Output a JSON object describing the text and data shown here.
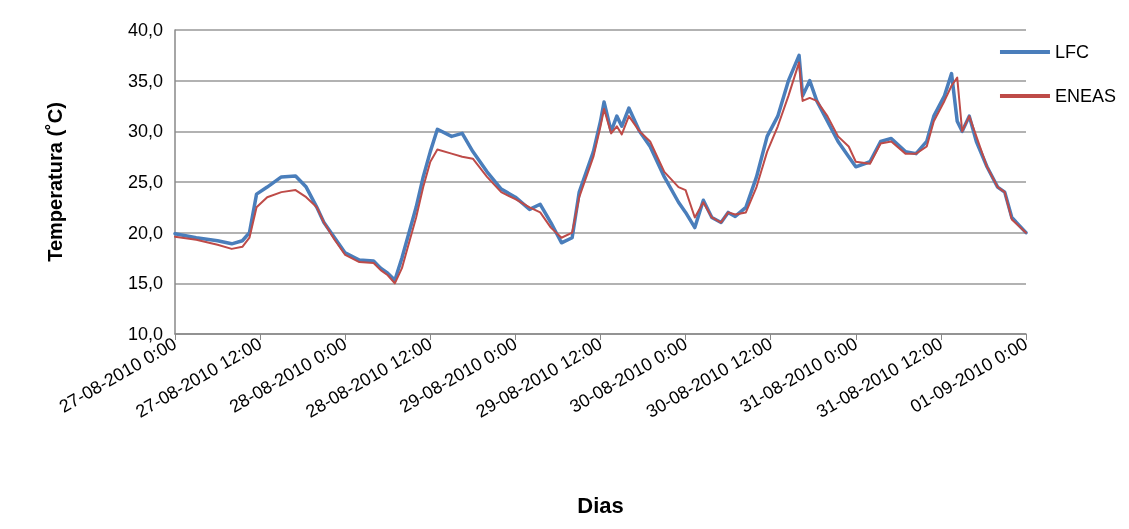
{
  "chart_data": {
    "type": "line",
    "xlabel": "Dias",
    "ylabel": "Temperatura (˚C)",
    "x": [
      "2010-08-27T00:00",
      "2010-08-27T03:00",
      "2010-08-27T06:00",
      "2010-08-27T08:00",
      "2010-08-27T09:30",
      "2010-08-27T10:30",
      "2010-08-27T11:30",
      "2010-08-27T13:00",
      "2010-08-27T15:00",
      "2010-08-27T17:00",
      "2010-08-27T18:30",
      "2010-08-27T20:00",
      "2010-08-27T21:00",
      "2010-08-27T22:30",
      "2010-08-28T00:00",
      "2010-08-28T02:00",
      "2010-08-28T04:00",
      "2010-08-28T05:00",
      "2010-08-28T06:00",
      "2010-08-28T07:00",
      "2010-08-28T08:00",
      "2010-08-28T10:00",
      "2010-08-28T11:00",
      "2010-08-28T12:00",
      "2010-08-28T13:00",
      "2010-08-28T15:00",
      "2010-08-28T16:30",
      "2010-08-28T18:00",
      "2010-08-28T20:00",
      "2010-08-28T22:00",
      "2010-08-29T00:00",
      "2010-08-29T02:00",
      "2010-08-29T03:30",
      "2010-08-29T05:00",
      "2010-08-29T06:30",
      "2010-08-29T08:00",
      "2010-08-29T09:00",
      "2010-08-29T11:00",
      "2010-08-29T12:00",
      "2010-08-29T12:30",
      "2010-08-29T13:30",
      "2010-08-29T14:18",
      "2010-08-29T15:00",
      "2010-08-29T16:00",
      "2010-08-29T17:30",
      "2010-08-29T19:00",
      "2010-08-29T21:00",
      "2010-08-29T23:00",
      "2010-08-30T00:00",
      "2010-08-30T01:18",
      "2010-08-30T02:30",
      "2010-08-30T03:42",
      "2010-08-30T05:00",
      "2010-08-30T06:00",
      "2010-08-30T07:00",
      "2010-08-30T08:30",
      "2010-08-30T10:00",
      "2010-08-30T11:30",
      "2010-08-30T13:00",
      "2010-08-30T14:30",
      "2010-08-30T16:00",
      "2010-08-30T16:30",
      "2010-08-30T17:30",
      "2010-08-30T18:30",
      "2010-08-30T20:00",
      "2010-08-30T21:30",
      "2010-08-30T23:00",
      "2010-08-31T00:00",
      "2010-08-31T02:00",
      "2010-08-31T03:30",
      "2010-08-31T05:00",
      "2010-08-31T07:00",
      "2010-08-31T08:30",
      "2010-08-31T10:00",
      "2010-08-31T11:00",
      "2010-08-31T12:30",
      "2010-08-31T13:30",
      "2010-08-31T14:18",
      "2010-08-31T15:00",
      "2010-08-31T16:00",
      "2010-08-31T17:00",
      "2010-08-31T18:30",
      "2010-08-31T20:00",
      "2010-08-31T21:00",
      "2010-08-31T22:00",
      "2010-09-01T00:00"
    ],
    "series": [
      {
        "name": "LFC",
        "color": "#4a7ebb",
        "values": [
          19.9,
          19.5,
          19.2,
          18.9,
          19.2,
          20,
          23.8,
          24.5,
          25.5,
          25.6,
          24.5,
          22.5,
          21,
          19.5,
          18,
          17.3,
          17.2,
          16.5,
          16,
          15.3,
          17.5,
          22.5,
          25.5,
          28,
          30.2,
          29.5,
          29.8,
          28,
          26,
          24.3,
          23.5,
          22.3,
          22.8,
          21,
          19,
          19.5,
          24,
          28,
          31,
          32.9,
          30,
          31.5,
          30.5,
          32.3,
          30,
          28.5,
          25.5,
          23,
          22,
          20.5,
          23.2,
          21.5,
          21,
          22,
          21.6,
          22.5,
          25.5,
          29.5,
          31.5,
          35,
          37.5,
          33.5,
          35,
          33,
          31,
          29,
          27.5,
          26.5,
          27,
          29,
          29.3,
          28,
          27.8,
          29,
          31.5,
          33.5,
          35.7,
          31,
          30,
          31.5,
          29,
          26.5,
          24.5,
          24,
          21.5,
          20
        ]
      },
      {
        "name": "ENEAS",
        "color": "#be4b48",
        "values": [
          19.6,
          19.3,
          18.8,
          18.4,
          18.6,
          19.5,
          22.5,
          23.5,
          24,
          24.2,
          23.5,
          22.5,
          21,
          19.3,
          17.8,
          17.1,
          17,
          16.3,
          15.8,
          15,
          16.5,
          21.5,
          24.5,
          27,
          28.2,
          27.8,
          27.5,
          27.3,
          25.5,
          24,
          23.3,
          22.5,
          22,
          20.5,
          19.5,
          20,
          23.5,
          27.5,
          30.5,
          32.2,
          29.8,
          30.5,
          29.7,
          31.5,
          30,
          29,
          26,
          24.5,
          24.2,
          21.5,
          23,
          21.5,
          21,
          22,
          21.8,
          22,
          24.5,
          28,
          30.5,
          33.5,
          36.8,
          33,
          33.3,
          33,
          31.5,
          29.5,
          28.5,
          27,
          26.8,
          28.8,
          29,
          27.8,
          27.8,
          28.5,
          31,
          33,
          34.5,
          35.3,
          30,
          31.5,
          29.5,
          26.5,
          24.5,
          24,
          21.3,
          20
        ]
      }
    ],
    "xlim": [
      "2010-08-27T00:00",
      "2010-09-01T00:00"
    ],
    "xticks": [
      {
        "value": "2010-08-27T00:00",
        "label": "27-08-2010 0:00"
      },
      {
        "value": "2010-08-27T12:00",
        "label": "27-08-2010 12:00"
      },
      {
        "value": "2010-08-28T00:00",
        "label": "28-08-2010 0:00"
      },
      {
        "value": "2010-08-28T12:00",
        "label": "28-08-2010 12:00"
      },
      {
        "value": "2010-08-29T00:00",
        "label": "29-08-2010 0:00"
      },
      {
        "value": "2010-08-29T12:00",
        "label": "29-08-2010 12:00"
      },
      {
        "value": "2010-08-30T00:00",
        "label": "30-08-2010 0:00"
      },
      {
        "value": "2010-08-30T12:00",
        "label": "30-08-2010 12:00"
      },
      {
        "value": "2010-08-31T00:00",
        "label": "31-08-2010 0:00"
      },
      {
        "value": "2010-08-31T12:00",
        "label": "31-08-2010 12:00"
      },
      {
        "value": "2010-09-01T00:00",
        "label": "01-09-2010 0:00"
      }
    ],
    "ylim": [
      10,
      40
    ],
    "yticks": [
      {
        "value": 10,
        "label": "10,0"
      },
      {
        "value": 15,
        "label": "15,0"
      },
      {
        "value": 20,
        "label": "20,0"
      },
      {
        "value": 25,
        "label": "25,0"
      },
      {
        "value": 30,
        "label": "30,0"
      },
      {
        "value": 35,
        "label": "35,0"
      },
      {
        "value": 40,
        "label": "40,0"
      }
    ],
    "grid": "y",
    "legend": "right",
    "marker": "none",
    "line_style": "solid"
  }
}
